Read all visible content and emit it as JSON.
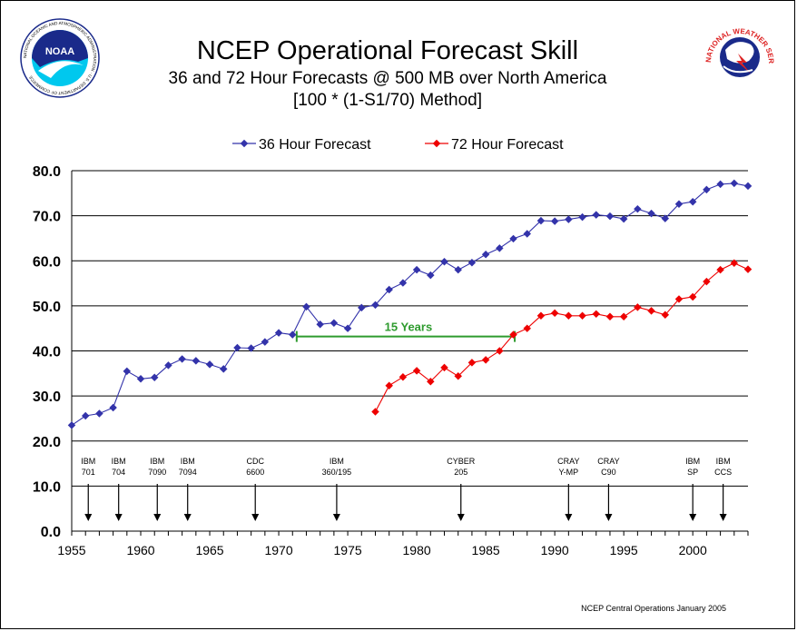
{
  "colors": {
    "series36": "#3333aa",
    "series72": "#ee0000",
    "gridline": "#000000",
    "annotation": "#2e9b2e",
    "noaaCyan": "#00c8ee",
    "noaaNavy": "#1a2a8a",
    "nwsRed": "#dd2222",
    "nwsBlue": "#1a2a8a"
  },
  "logos": {
    "left": {
      "text": "NOAA",
      "ring": "NATIONAL OCEANIC AND ATMOSPHERIC ADMINISTRATION · U.S. DEPARTMENT OF COMMERCE"
    },
    "right": {
      "ring": "NATIONAL WEATHER SERVICE"
    }
  },
  "footer": "NCEP Central Operations January 2005",
  "chart_data": {
    "type": "line",
    "title": "NCEP Operational Forecast Skill",
    "subtitle1": "36 and 72 Hour Forecasts @ 500 MB over North America",
    "subtitle2": "[100 * (1-S1/70) Method]",
    "xlim": [
      1955,
      2004
    ],
    "ylim": [
      0,
      80
    ],
    "xticks": [
      1955,
      1960,
      1965,
      1970,
      1975,
      1980,
      1985,
      1990,
      1995,
      2000
    ],
    "yticks": [
      "0.0",
      "10.0",
      "20.0",
      "30.0",
      "40.0",
      "50.0",
      "60.0",
      "70.0",
      "80.0"
    ],
    "grid": true,
    "legend_position": "top",
    "series": [
      {
        "name": "36 Hour Forecast",
        "color": "#3333aa",
        "x": [
          1955,
          1956,
          1957,
          1958,
          1959,
          1960,
          1961,
          1962,
          1963,
          1964,
          1965,
          1966,
          1967,
          1968,
          1969,
          1970,
          1971,
          1972,
          1973,
          1974,
          1975,
          1976,
          1977,
          1978,
          1979,
          1980,
          1981,
          1982,
          1983,
          1984,
          1985,
          1986,
          1987,
          1988,
          1989,
          1990,
          1991,
          1992,
          1993,
          1994,
          1995,
          1996,
          1997,
          1998,
          1999,
          2000,
          2001,
          2002,
          2003,
          2004
        ],
        "values": [
          23.5,
          25.6,
          26.1,
          27.4,
          35.5,
          33.8,
          34.1,
          36.8,
          38.2,
          37.8,
          37.0,
          36.0,
          40.7,
          40.6,
          42.0,
          44.0,
          43.6,
          49.8,
          45.9,
          46.2,
          45.0,
          49.6,
          50.2,
          53.6,
          55.1,
          58.0,
          56.8,
          59.8,
          58.0,
          59.6,
          61.4,
          62.8,
          64.9,
          66.0,
          68.9,
          68.8,
          69.2,
          69.7,
          70.2,
          69.9,
          69.3,
          71.5,
          70.5,
          69.4,
          72.6,
          73.1,
          75.8,
          77.0,
          77.2,
          76.6
        ]
      },
      {
        "name": "72 Hour Forecast",
        "color": "#ee0000",
        "x": [
          1977,
          1978,
          1979,
          1980,
          1981,
          1982,
          1983,
          1984,
          1985,
          1986,
          1987,
          1988,
          1989,
          1990,
          1991,
          1992,
          1993,
          1994,
          1995,
          1996,
          1997,
          1998,
          1999,
          2000,
          2001,
          2002,
          2003,
          2004
        ],
        "values": [
          26.5,
          32.3,
          34.2,
          35.6,
          33.2,
          36.3,
          34.4,
          37.4,
          38.0,
          40.0,
          43.6,
          45.0,
          47.8,
          48.4,
          47.8,
          47.8,
          48.2,
          47.6,
          47.6,
          49.7,
          48.9,
          48.0,
          51.5,
          52.0,
          55.4,
          58.0,
          59.5,
          58.1
        ]
      }
    ],
    "computers": [
      {
        "line1": "IBM",
        "line2": "701",
        "year": 1956.2
      },
      {
        "line1": "IBM",
        "line2": "704",
        "year": 1958.4
      },
      {
        "line1": "IBM",
        "line2": "7090",
        "year": 1961.2
      },
      {
        "line1": "IBM",
        "line2": "7094",
        "year": 1963.4
      },
      {
        "line1": "CDC",
        "line2": "6600",
        "year": 1968.3
      },
      {
        "line1": "IBM",
        "line2": "360/195",
        "year": 1974.2
      },
      {
        "line1": "CYBER",
        "line2": "205",
        "year": 1983.2
      },
      {
        "line1": "CRAY",
        "line2": "Y-MP",
        "year": 1991.0
      },
      {
        "line1": "CRAY",
        "line2": "C90",
        "year": 1993.9
      },
      {
        "line1": "IBM",
        "line2": "SP",
        "year": 2000.0
      },
      {
        "line1": "IBM",
        "line2": "CCS",
        "year": 2002.2
      }
    ],
    "annotation": {
      "label": "15 Years",
      "x_start": 1971.3,
      "x_end": 1987.1,
      "y": 43.2
    }
  }
}
